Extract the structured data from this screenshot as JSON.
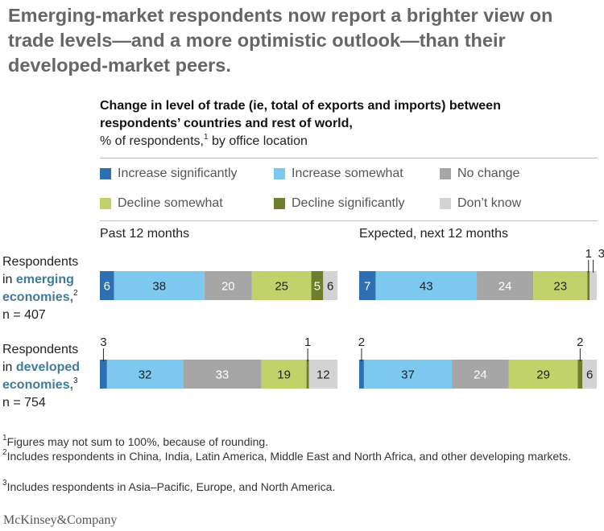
{
  "headline": "Emerging-market respondents now report a brighter view on trade levels—and a more optimistic outlook—than their developed-market peers.",
  "subtitle_bold": "Change in level of trade (ie, total of exports and imports) between respondents’ countries and rest of world,",
  "subtitle_normal": "% of respondents,",
  "subtitle_sup": "1",
  "subtitle_tail": " by office location",
  "rows": [
    {
      "line1": "Respondents",
      "line2_pre": "in ",
      "line2_hl": "emerging",
      "line3_hl": "economies,",
      "sup": "2",
      "n": "n = 407"
    },
    {
      "line1": "Respondents",
      "line2_pre": "in ",
      "line2_hl": "developed",
      "line3_hl": "economies,",
      "sup": "3",
      "n": "n = 754"
    }
  ],
  "footnotes": [
    {
      "sup": "1",
      "text": "Figures may not sum to 100%, because of rounding."
    },
    {
      "sup": "2",
      "text": "Includes respondents in China, India, Latin America, Middle East and North Africa, and other developing markets."
    },
    {
      "sup": "3",
      "text": "Includes respondents in Asia–Pacific, Europe, and North America."
    }
  ],
  "brand": "McKinsey&Company",
  "chart_data": {
    "type": "bar",
    "orientation": "horizontal-stacked-100",
    "categories": [
      "Respondents in emerging economies",
      "Respondents in developed economies"
    ],
    "panels": [
      "Past 12 months",
      "Expected, next 12 months"
    ],
    "series": [
      {
        "name": "Increase significantly",
        "color": "#2d6fb0",
        "text_color": "#ffffff"
      },
      {
        "name": "Increase somewhat",
        "color": "#7dc8ee",
        "text_color": "#222222"
      },
      {
        "name": "No change",
        "color": "#a6a6a6",
        "text_color": "#ffffff"
      },
      {
        "name": "Decline somewhat",
        "color": "#c2d26a",
        "text_color": "#222222"
      },
      {
        "name": "Decline significantly",
        "color": "#6d7f2b",
        "text_color": "#ffffff"
      },
      {
        "name": "Don’t know",
        "color": "#d3d3d3",
        "text_color": "#222222"
      }
    ],
    "values": {
      "Past 12 months": [
        [
          6,
          38,
          20,
          25,
          5,
          6
        ],
        [
          3,
          32,
          33,
          19,
          1,
          12
        ]
      ],
      "Expected, next 12 months": [
        [
          7,
          43,
          24,
          23,
          1,
          3
        ],
        [
          2,
          37,
          24,
          29,
          2,
          6
        ]
      ]
    },
    "legend": "top"
  }
}
